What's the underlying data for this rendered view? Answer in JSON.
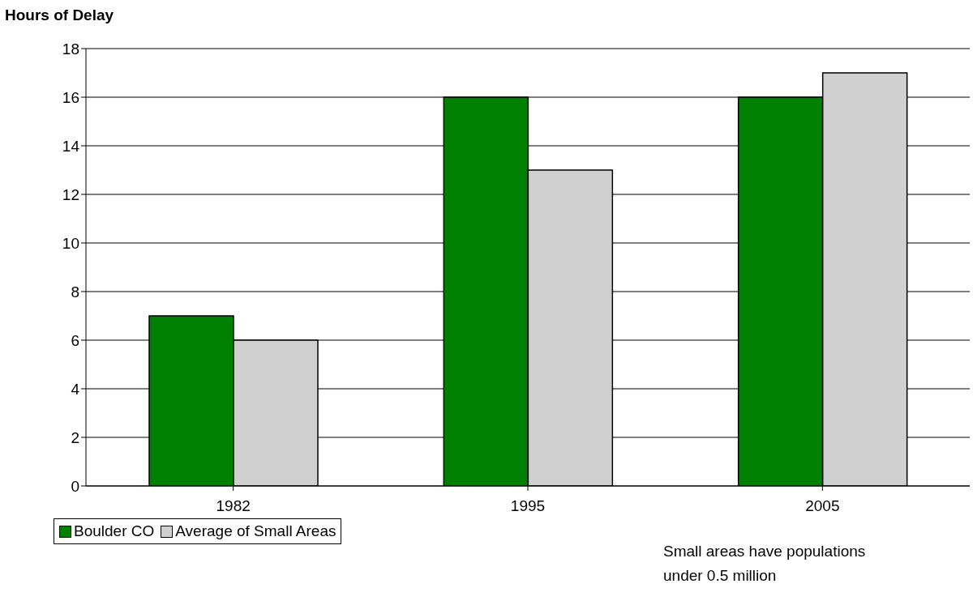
{
  "chart_data": {
    "type": "bar",
    "title": "Hours of Delay",
    "categories": [
      "1982",
      "1995",
      "2005"
    ],
    "series": [
      {
        "name": "Boulder CO",
        "color": "#008000",
        "values": [
          7,
          16,
          16
        ]
      },
      {
        "name": "Average of Small Areas",
        "color": "#d0d0d0",
        "values": [
          6,
          13,
          17
        ]
      }
    ],
    "ylim": [
      0,
      18
    ],
    "yticks": [
      0,
      2,
      4,
      6,
      8,
      10,
      12,
      14,
      16,
      18
    ],
    "grid": "y",
    "legend": "bottom left",
    "annotations": [
      "Small areas have populations under 0.5 million"
    ]
  }
}
